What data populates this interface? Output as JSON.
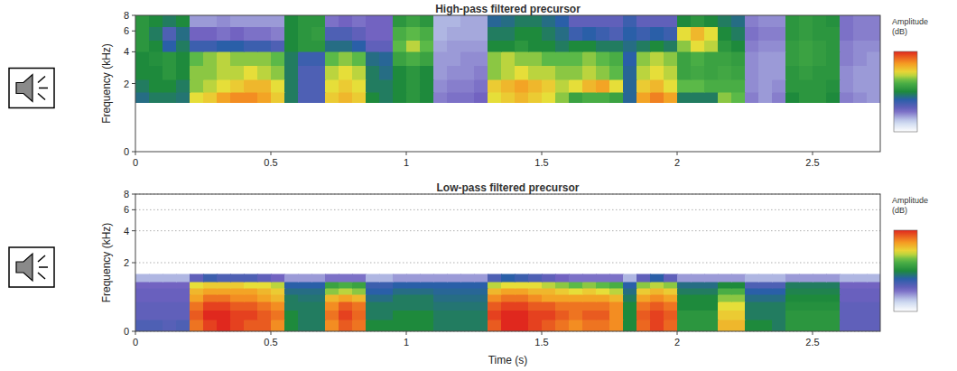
{
  "chart_data": [
    {
      "type": "heatmap",
      "title": "High-pass filtered precursor",
      "ylabel": "Frequency (kHz)",
      "xlim": [
        0,
        2.75
      ],
      "xticks": [
        0,
        0.5,
        1,
        1.5,
        2,
        2.5
      ],
      "ylim": [
        0,
        8
      ],
      "yticks": [
        0,
        2,
        4,
        6,
        8
      ],
      "log": "y",
      "grid": false,
      "x_edges": [
        0,
        0.05,
        0.1,
        0.15,
        0.2,
        0.25,
        0.3,
        0.35,
        0.4,
        0.45,
        0.5,
        0.55,
        0.6,
        0.65,
        0.7,
        0.75,
        0.8,
        0.85,
        0.9,
        0.95,
        1,
        1.05,
        1.1,
        1.15,
        1.2,
        1.25,
        1.3,
        1.35,
        1.4,
        1.45,
        1.5,
        1.55,
        1.6,
        1.65,
        1.7,
        1.75,
        1.8,
        1.85,
        1.9,
        1.95,
        2,
        2.05,
        2.1,
        2.15,
        2.2,
        2.25,
        2.3,
        2.35,
        2.4,
        2.45,
        2.5,
        2.55,
        2.6,
        2.65,
        2.7,
        2.75
      ],
      "y_edges": [
        1.2,
        1.6,
        2.2,
        3,
        4,
        5,
        6.5,
        8
      ],
      "cells": [
        [
          26,
          28,
          28,
          27,
          44,
          46,
          50,
          52,
          52,
          50,
          46,
          28,
          20,
          20,
          46,
          48,
          46,
          30,
          28,
          30,
          32,
          30,
          14,
          15,
          15,
          16,
          44,
          46,
          48,
          46,
          44,
          40,
          34,
          36,
          36,
          34,
          25,
          50,
          53,
          50,
          28,
          28,
          28,
          40,
          38,
          14,
          12,
          14,
          30,
          32,
          32,
          30,
          14,
          13,
          12
        ],
        [
          28,
          30,
          30,
          28,
          40,
          42,
          44,
          46,
          48,
          48,
          44,
          28,
          20,
          20,
          44,
          46,
          44,
          28,
          28,
          30,
          32,
          30,
          13,
          14,
          14,
          15,
          46,
          48,
          50,
          48,
          46,
          42,
          44,
          48,
          50,
          44,
          25,
          46,
          48,
          44,
          38,
          38,
          36,
          36,
          36,
          13,
          12,
          13,
          32,
          32,
          32,
          31,
          13,
          12,
          12
        ],
        [
          30,
          30,
          32,
          30,
          40,
          40,
          42,
          42,
          44,
          42,
          40,
          28,
          20,
          20,
          42,
          44,
          42,
          28,
          26,
          30,
          32,
          30,
          12,
          13,
          13,
          14,
          40,
          42,
          44,
          42,
          42,
          40,
          40,
          42,
          40,
          38,
          25,
          42,
          44,
          42,
          34,
          35,
          34,
          35,
          34,
          13,
          12,
          12,
          32,
          33,
          32,
          32,
          13,
          12,
          12
        ],
        [
          30,
          31,
          32,
          30,
          38,
          40,
          42,
          40,
          40,
          40,
          38,
          28,
          22,
          22,
          38,
          40,
          38,
          26,
          25,
          34,
          36,
          34,
          12,
          12,
          13,
          13,
          40,
          42,
          40,
          40,
          38,
          38,
          38,
          40,
          38,
          36,
          24,
          40,
          42,
          40,
          34,
          36,
          34,
          34,
          33,
          13,
          12,
          12,
          33,
          34,
          33,
          32,
          14,
          13,
          12
        ],
        [
          32,
          30,
          24,
          28,
          22,
          22,
          24,
          24,
          22,
          22,
          20,
          30,
          32,
          32,
          26,
          26,
          24,
          18,
          18,
          38,
          42,
          38,
          11,
          12,
          12,
          12,
          30,
          30,
          32,
          30,
          30,
          28,
          30,
          30,
          28,
          28,
          26,
          28,
          30,
          28,
          40,
          44,
          42,
          32,
          30,
          14,
          13,
          13,
          33,
          34,
          33,
          32,
          14,
          13,
          13
        ],
        [
          32,
          28,
          20,
          26,
          16,
          16,
          15,
          16,
          15,
          15,
          14,
          30,
          32,
          33,
          20,
          20,
          18,
          16,
          16,
          36,
          38,
          36,
          10,
          11,
          11,
          11,
          28,
          28,
          30,
          30,
          28,
          26,
          22,
          24,
          22,
          20,
          24,
          22,
          24,
          22,
          44,
          48,
          44,
          30,
          28,
          15,
          14,
          14,
          32,
          33,
          32,
          32,
          15,
          14,
          14
        ],
        [
          32,
          30,
          28,
          30,
          12,
          12,
          13,
          12,
          12,
          12,
          12,
          30,
          32,
          32,
          15,
          16,
          15,
          16,
          16,
          32,
          34,
          32,
          10,
          10,
          11,
          11,
          25,
          26,
          28,
          28,
          26,
          24,
          18,
          18,
          18,
          18,
          22,
          18,
          18,
          18,
          30,
          32,
          30,
          28,
          26,
          14,
          13,
          13,
          32,
          33,
          32,
          31,
          15,
          14,
          14
        ]
      ],
      "colorbar": {
        "label": "Amplitude (dB)",
        "range": [
          0,
          60
        ]
      }
    },
    {
      "type": "heatmap",
      "title": "Low-pass filtered precursor",
      "xlabel": "Time (s)",
      "ylabel": "Frequency (kHz)",
      "xlim": [
        0,
        2.75
      ],
      "xticks": [
        0,
        0.5,
        1,
        1.5,
        2,
        2.5
      ],
      "ylim": [
        0,
        8
      ],
      "yticks": [
        0,
        2,
        4,
        6,
        8
      ],
      "log": "y",
      "grid": true,
      "x_edges": [
        0,
        0.05,
        0.1,
        0.15,
        0.2,
        0.25,
        0.3,
        0.35,
        0.4,
        0.45,
        0.5,
        0.55,
        0.6,
        0.65,
        0.7,
        0.75,
        0.8,
        0.85,
        0.9,
        0.95,
        1,
        1.05,
        1.1,
        1.15,
        1.2,
        1.25,
        1.3,
        1.35,
        1.4,
        1.45,
        1.5,
        1.55,
        1.6,
        1.65,
        1.7,
        1.75,
        1.8,
        1.85,
        1.9,
        1.95,
        2,
        2.05,
        2.1,
        2.15,
        2.2,
        2.25,
        2.3,
        2.35,
        2.4,
        2.45,
        2.5,
        2.55,
        2.6,
        2.65,
        2.7,
        2.75
      ],
      "y_edges": [
        0,
        0.2,
        0.4,
        0.6,
        0.8,
        1,
        1.2,
        1.5
      ],
      "cells": [
        [
          20,
          20,
          19,
          20,
          54,
          58,
          60,
          58,
          56,
          56,
          52,
          30,
          28,
          28,
          52,
          56,
          54,
          30,
          30,
          30,
          30,
          30,
          28,
          28,
          28,
          28,
          56,
          60,
          60,
          58,
          56,
          54,
          52,
          54,
          54,
          52,
          30,
          55,
          58,
          55,
          32,
          32,
          32,
          48,
          48,
          30,
          30,
          28,
          32,
          32,
          32,
          32,
          18,
          18,
          18
        ],
        [
          18,
          18,
          18,
          18,
          56,
          60,
          60,
          58,
          58,
          56,
          54,
          30,
          28,
          28,
          54,
          58,
          55,
          28,
          28,
          30,
          30,
          30,
          28,
          28,
          28,
          28,
          58,
          60,
          60,
          58,
          58,
          56,
          54,
          56,
          56,
          52,
          30,
          56,
          58,
          56,
          32,
          32,
          32,
          46,
          46,
          28,
          28,
          28,
          32,
          32,
          32,
          32,
          18,
          18,
          18
        ],
        [
          18,
          18,
          18,
          18,
          54,
          58,
          58,
          56,
          56,
          54,
          52,
          28,
          28,
          28,
          52,
          56,
          54,
          28,
          28,
          28,
          28,
          28,
          27,
          27,
          27,
          27,
          56,
          58,
          58,
          56,
          56,
          54,
          54,
          54,
          54,
          52,
          30,
          54,
          56,
          54,
          30,
          30,
          30,
          44,
          44,
          28,
          28,
          28,
          31,
          31,
          31,
          31,
          18,
          18,
          18
        ],
        [
          17,
          17,
          17,
          17,
          50,
          54,
          54,
          52,
          52,
          50,
          48,
          28,
          27,
          27,
          48,
          50,
          48,
          26,
          26,
          28,
          28,
          28,
          26,
          26,
          26,
          26,
          52,
          54,
          54,
          52,
          50,
          50,
          50,
          50,
          50,
          48,
          28,
          50,
          52,
          50,
          30,
          30,
          30,
          40,
          40,
          26,
          26,
          26,
          30,
          30,
          30,
          30,
          17,
          17,
          17
        ],
        [
          17,
          17,
          17,
          17,
          48,
          50,
          50,
          50,
          50,
          48,
          46,
          26,
          26,
          26,
          40,
          42,
          40,
          24,
          24,
          26,
          26,
          26,
          25,
          25,
          25,
          25,
          48,
          50,
          50,
          48,
          48,
          46,
          44,
          46,
          44,
          42,
          26,
          46,
          48,
          46,
          28,
          28,
          28,
          36,
          36,
          24,
          24,
          24,
          29,
          29,
          29,
          29,
          17,
          17,
          17
        ],
        [
          16,
          16,
          16,
          16,
          44,
          46,
          46,
          46,
          44,
          44,
          42,
          24,
          24,
          24,
          34,
          36,
          34,
          22,
          22,
          24,
          24,
          24,
          24,
          24,
          24,
          24,
          42,
          44,
          44,
          44,
          42,
          40,
          38,
          40,
          38,
          36,
          24,
          40,
          42,
          40,
          26,
          26,
          26,
          30,
          30,
          20,
          20,
          20,
          28,
          28,
          28,
          28,
          16,
          16,
          16
        ],
        [
          10,
          10,
          10,
          10,
          18,
          22,
          20,
          20,
          20,
          18,
          16,
          12,
          12,
          12,
          15,
          15,
          15,
          10,
          10,
          12,
          12,
          12,
          12,
          12,
          12,
          12,
          20,
          24,
          22,
          20,
          18,
          16,
          15,
          15,
          15,
          15,
          10,
          18,
          24,
          18,
          12,
          12,
          12,
          12,
          12,
          10,
          10,
          10,
          12,
          12,
          12,
          12,
          10,
          10,
          10
        ]
      ],
      "colorbar": {
        "label": "Amplitude (dB)",
        "range": [
          0,
          60
        ]
      }
    }
  ]
}
